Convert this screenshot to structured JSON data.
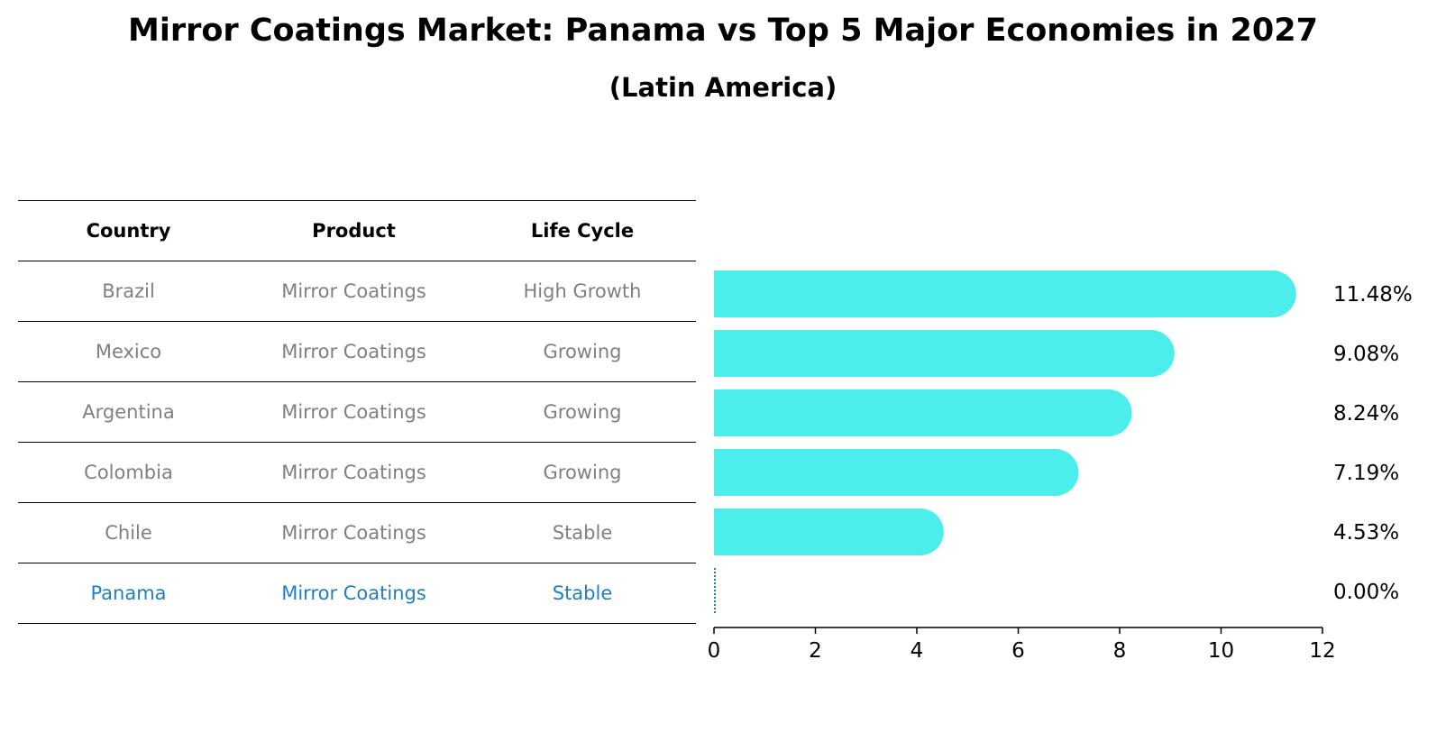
{
  "title": "Mirror Coatings Market: Panama vs Top 5 Major Economies in 2027",
  "subtitle": "(Latin America)",
  "table": {
    "headers": [
      "Country",
      "Product",
      "Life Cycle"
    ],
    "rows": [
      {
        "country": "Brazil",
        "product": "Mirror Coatings",
        "life_cycle": "High Growth"
      },
      {
        "country": "Mexico",
        "product": "Mirror Coatings",
        "life_cycle": "Growing"
      },
      {
        "country": "Argentina",
        "product": "Mirror Coatings",
        "life_cycle": "Growing"
      },
      {
        "country": "Colombia",
        "product": "Mirror Coatings",
        "life_cycle": "Growing"
      },
      {
        "country": "Chile",
        "product": "Mirror Coatings",
        "life_cycle": "Stable"
      },
      {
        "country": "Panama",
        "product": "Mirror Coatings",
        "life_cycle": "Stable"
      }
    ]
  },
  "chart_data": {
    "type": "bar",
    "orientation": "horizontal",
    "categories": [
      "Brazil",
      "Mexico",
      "Argentina",
      "Colombia",
      "Chile",
      "Panama"
    ],
    "values": [
      11.48,
      9.08,
      8.24,
      7.19,
      4.53,
      0.0
    ],
    "value_labels": [
      "11.48%",
      "9.08%",
      "8.24%",
      "7.19%",
      "4.53%",
      "0.00%"
    ],
    "xlim": [
      0,
      12
    ],
    "xticks": [
      0,
      2,
      4,
      6,
      8,
      10,
      12
    ],
    "bar_color": "#4beeea",
    "highlight_color": "#1f7fc4",
    "highlight_category": "Panama"
  }
}
